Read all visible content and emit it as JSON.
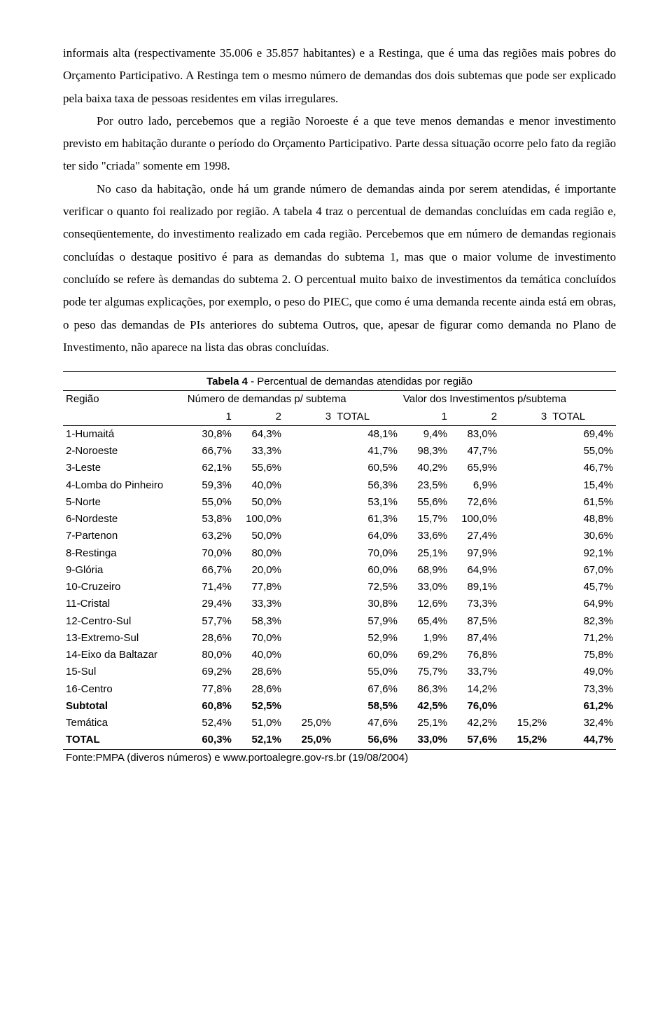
{
  "paragraphs": {
    "p1": "informais alta (respectivamente 35.006 e 35.857 habitantes) e a Restinga, que é uma das regiões mais pobres do Orçamento Participativo. A Restinga tem o mesmo número de demandas dos dois subtemas que pode ser explicado pela baixa taxa de pessoas residentes em vilas irregulares.",
    "p2": "Por outro lado, percebemos que a região Noroeste é a que teve menos demandas e menor investimento previsto em habitação durante o período do Orçamento Participativo. Parte dessa situação ocorre pelo fato da região ter sido \"criada\" somente em 1998.",
    "p3": "No caso da habitação, onde há um grande número de demandas ainda por serem atendidas, é importante verificar o quanto foi realizado por região. A tabela 4 traz o percentual de demandas concluídas em cada região e, conseqüentemente, do investimento realizado em cada região. Percebemos que em número de demandas regionais concluídas o destaque positivo é para as demandas do subtema 1, mas que o maior volume de investimento concluído se refere às demandas do subtema 2. O percentual muito baixo de investimentos da temática concluídos pode ter algumas explicações, por exemplo, o peso do PIEC, que como é uma demanda recente ainda está em obras, o peso das demandas de PIs anteriores do subtema Outros, que, apesar de figurar como demanda no Plano de Investimento, não aparece na lista das obras concluídas."
  },
  "table": {
    "title_bold": "Tabela 4",
    "title_rest": " - Percentual de demandas atendidas por região",
    "h_region": "Região",
    "h_group1": "Número de demandas p/ subtema",
    "h_group2": "Valor dos Investimentos p/subtema",
    "sub": {
      "c1": "1",
      "c2": "2",
      "c3": "3",
      "ct": "TOTAL"
    },
    "rows": [
      {
        "r": "1-Humaitá",
        "a1": "30,8%",
        "a2": "64,3%",
        "a3": "",
        "at": "48,1%",
        "b1": "9,4%",
        "b2": "83,0%",
        "b3": "",
        "bt": "69,4%",
        "bold": false
      },
      {
        "r": "2-Noroeste",
        "a1": "66,7%",
        "a2": "33,3%",
        "a3": "",
        "at": "41,7%",
        "b1": "98,3%",
        "b2": "47,7%",
        "b3": "",
        "bt": "55,0%",
        "bold": false
      },
      {
        "r": "3-Leste",
        "a1": "62,1%",
        "a2": "55,6%",
        "a3": "",
        "at": "60,5%",
        "b1": "40,2%",
        "b2": "65,9%",
        "b3": "",
        "bt": "46,7%",
        "bold": false
      },
      {
        "r": "4-Lomba do Pinheiro",
        "a1": "59,3%",
        "a2": "40,0%",
        "a3": "",
        "at": "56,3%",
        "b1": "23,5%",
        "b2": "6,9%",
        "b3": "",
        "bt": "15,4%",
        "bold": false
      },
      {
        "r": "5-Norte",
        "a1": "55,0%",
        "a2": "50,0%",
        "a3": "",
        "at": "53,1%",
        "b1": "55,6%",
        "b2": "72,6%",
        "b3": "",
        "bt": "61,5%",
        "bold": false
      },
      {
        "r": "6-Nordeste",
        "a1": "53,8%",
        "a2": "100,0%",
        "a3": "",
        "at": "61,3%",
        "b1": "15,7%",
        "b2": "100,0%",
        "b3": "",
        "bt": "48,8%",
        "bold": false
      },
      {
        "r": "7-Partenon",
        "a1": "63,2%",
        "a2": "50,0%",
        "a3": "",
        "at": "64,0%",
        "b1": "33,6%",
        "b2": "27,4%",
        "b3": "",
        "bt": "30,6%",
        "bold": false
      },
      {
        "r": "8-Restinga",
        "a1": "70,0%",
        "a2": "80,0%",
        "a3": "",
        "at": "70,0%",
        "b1": "25,1%",
        "b2": "97,9%",
        "b3": "",
        "bt": "92,1%",
        "bold": false
      },
      {
        "r": "9-Glória",
        "a1": "66,7%",
        "a2": "20,0%",
        "a3": "",
        "at": "60,0%",
        "b1": "68,9%",
        "b2": "64,9%",
        "b3": "",
        "bt": "67,0%",
        "bold": false
      },
      {
        "r": "10-Cruzeiro",
        "a1": "71,4%",
        "a2": "77,8%",
        "a3": "",
        "at": "72,5%",
        "b1": "33,0%",
        "b2": "89,1%",
        "b3": "",
        "bt": "45,7%",
        "bold": false
      },
      {
        "r": "11-Cristal",
        "a1": "29,4%",
        "a2": "33,3%",
        "a3": "",
        "at": "30,8%",
        "b1": "12,6%",
        "b2": "73,3%",
        "b3": "",
        "bt": "64,9%",
        "bold": false
      },
      {
        "r": "12-Centro-Sul",
        "a1": "57,7%",
        "a2": "58,3%",
        "a3": "",
        "at": "57,9%",
        "b1": "65,4%",
        "b2": "87,5%",
        "b3": "",
        "bt": "82,3%",
        "bold": false
      },
      {
        "r": "13-Extremo-Sul",
        "a1": "28,6%",
        "a2": "70,0%",
        "a3": "",
        "at": "52,9%",
        "b1": "1,9%",
        "b2": "87,4%",
        "b3": "",
        "bt": "71,2%",
        "bold": false
      },
      {
        "r": "14-Eixo da Baltazar",
        "a1": "80,0%",
        "a2": "40,0%",
        "a3": "",
        "at": "60,0%",
        "b1": "69,2%",
        "b2": "76,8%",
        "b3": "",
        "bt": "75,8%",
        "bold": false
      },
      {
        "r": "15-Sul",
        "a1": "69,2%",
        "a2": "28,6%",
        "a3": "",
        "at": "55,0%",
        "b1": "75,7%",
        "b2": "33,7%",
        "b3": "",
        "bt": "49,0%",
        "bold": false
      },
      {
        "r": "16-Centro",
        "a1": "77,8%",
        "a2": "28,6%",
        "a3": "",
        "at": "67,6%",
        "b1": "86,3%",
        "b2": "14,2%",
        "b3": "",
        "bt": "73,3%",
        "bold": false
      },
      {
        "r": "Subtotal",
        "a1": "60,8%",
        "a2": "52,5%",
        "a3": "",
        "at": "58,5%",
        "b1": "42,5%",
        "b2": "76,0%",
        "b3": "",
        "bt": "61,2%",
        "bold": true
      },
      {
        "r": "Temática",
        "a1": "52,4%",
        "a2": "51,0%",
        "a3": "25,0%",
        "at": "47,6%",
        "b1": "25,1%",
        "b2": "42,2%",
        "b3": "15,2%",
        "bt": "32,4%",
        "bold": false
      },
      {
        "r": "TOTAL",
        "a1": "60,3%",
        "a2": "52,1%",
        "a3": "25,0%",
        "at": "56,6%",
        "b1": "33,0%",
        "b2": "57,6%",
        "b3": "15,2%",
        "bt": "44,7%",
        "bold": true
      }
    ],
    "footnote": "Fonte:PMPA (diveros números) e www.portoalegre.gov-rs.br (19/08/2004)"
  }
}
